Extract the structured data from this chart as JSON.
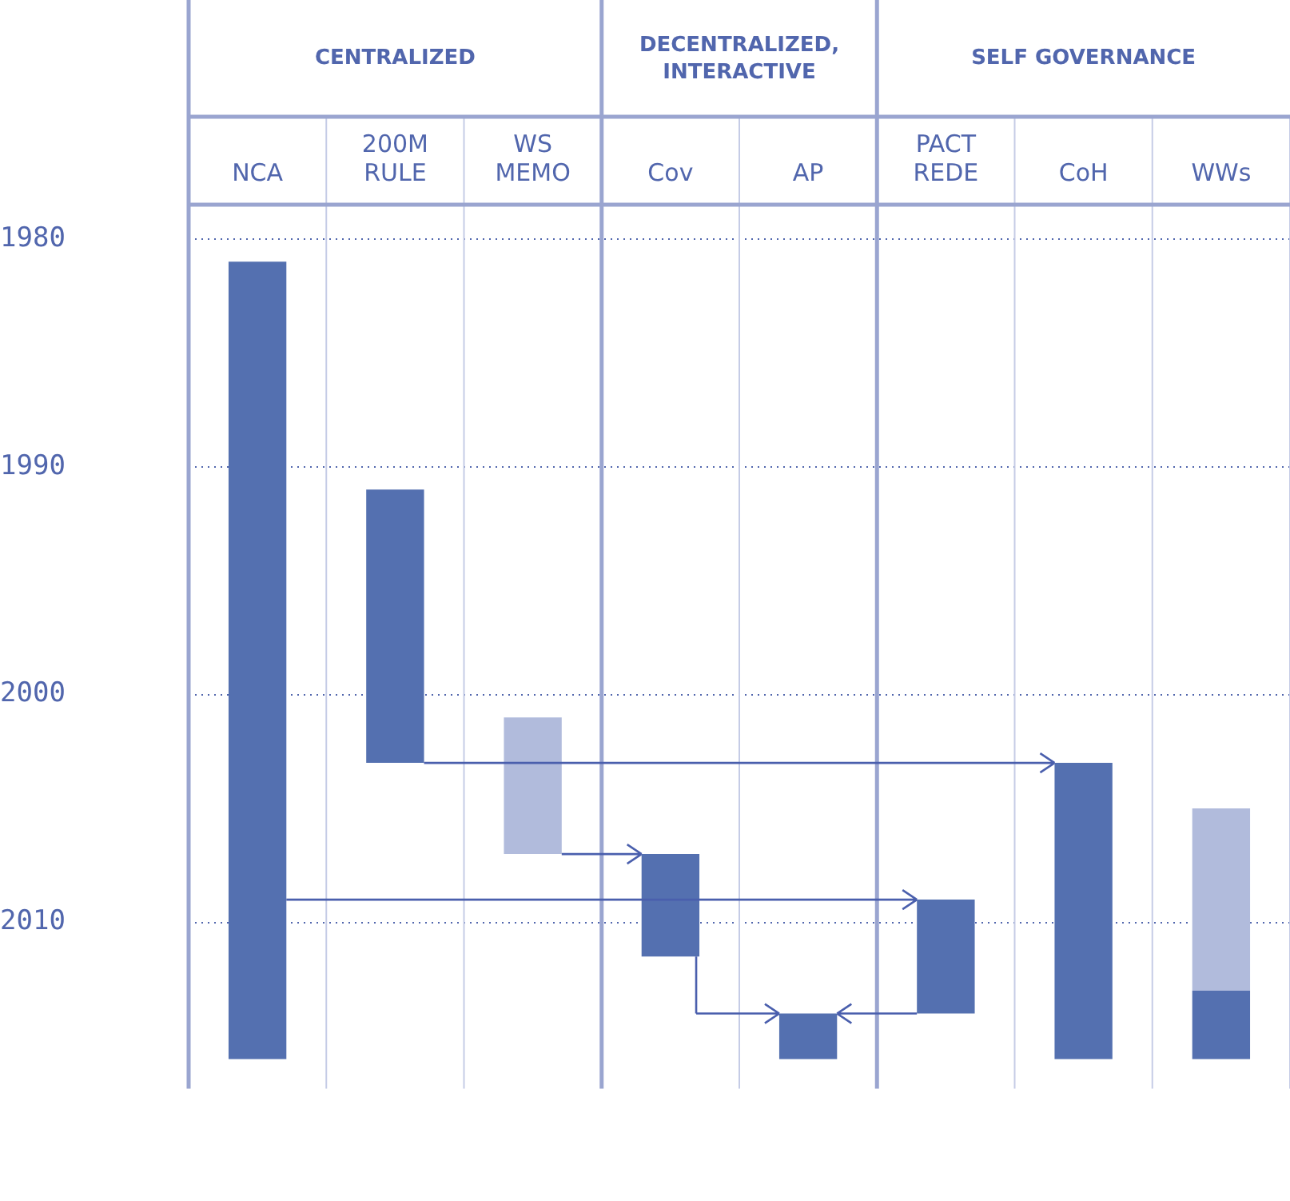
{
  "chart_data": {
    "type": "bar",
    "categories": [
      "NCA",
      "200M RULE",
      "WS MEMO",
      "Cov",
      "AP",
      "PACT REDE",
      "CoH",
      "WWs"
    ],
    "series": [
      {
        "color": "#5470b0",
        "base": [
          1981,
          1991,
          null,
          2007,
          2014,
          2009,
          2003,
          2013
        ],
        "values": [
          35,
          12,
          null,
          4.5,
          2,
          5,
          13,
          3
        ]
      },
      {
        "color": "#b1bbdc",
        "base": [
          null,
          null,
          2001,
          null,
          null,
          null,
          null,
          2005
        ],
        "values": [
          null,
          null,
          6,
          null,
          null,
          null,
          null,
          8
        ]
      }
    ],
    "ylim": [
      2017.3,
      1978.5
    ],
    "yticks": [
      1980,
      1990,
      2000,
      2010
    ],
    "grid": "y",
    "annotations": [
      "CENTRALIZED",
      "DECENTRALIZED, INTERACTIVE",
      "SELF GOVERNANCE"
    ]
  }
}
